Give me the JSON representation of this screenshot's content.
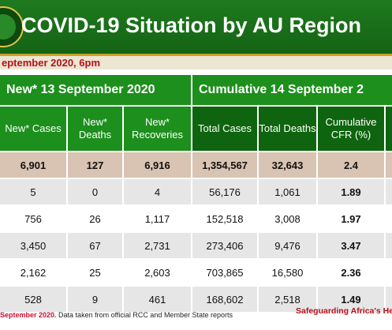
{
  "header": {
    "title": "COVID-19 Situation by AU Region",
    "subtitle": "eptember 2020, 6pm"
  },
  "table": {
    "group_new": "New* 13 September 2020",
    "group_cum": "Cumulative 14 September 2",
    "columns": [
      "New* Cases",
      "New* Deaths",
      "New* Recoveries",
      "Total Cases",
      "Total Deaths",
      "Cumulative CFR (%)"
    ],
    "rows": [
      [
        "6,901",
        "127",
        "6,916",
        "1,354,567",
        "32,643",
        "2.4"
      ],
      [
        "5",
        "0",
        "4",
        "56,176",
        "1,061",
        "1.89"
      ],
      [
        "756",
        "26",
        "1,117",
        "152,518",
        "3,008",
        "1.97"
      ],
      [
        "3,450",
        "67",
        "2,731",
        "273,406",
        "9,476",
        "3.47"
      ],
      [
        "2,162",
        "25",
        "2,603",
        "703,865",
        "16,580",
        "2.36"
      ],
      [
        "528",
        "9",
        "461",
        "168,602",
        "2,518",
        "1.49"
      ]
    ]
  },
  "footer": {
    "date_text": "September 2020.",
    "note": " Data taken from official RCC and Member State reports",
    "tagline": "Safeguarding Africa's Healt"
  },
  "colors": {
    "header_green": "#1f7a1f",
    "table_green": "#1c8f1c",
    "dark_green": "#0f650f",
    "gold": "#c9a227",
    "accent_red": "#b5101a",
    "total_row_tan": "#d9c3b2",
    "alt_row_gray": "#e6e6e6"
  },
  "icons": {
    "logo": "african-union-emblem-icon"
  }
}
